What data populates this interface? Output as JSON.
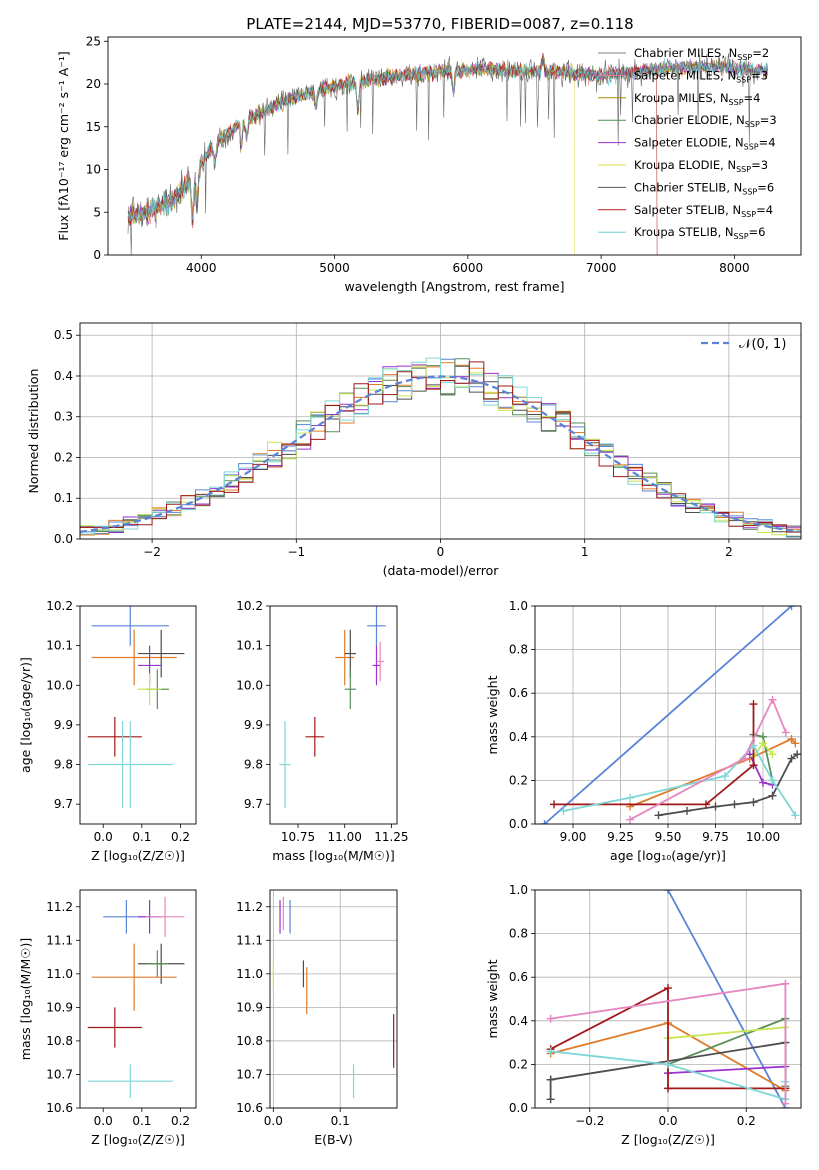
{
  "figure_title": "PLATE=2144, MJD=53770, FIBERID=0087, z=0.118",
  "colors": {
    "Chabrier MILES": "#7f7f7f",
    "Salpeter MILES": "#f08080",
    "Kroupa MILES": "#b8860b",
    "Chabrier ELODIE": "#4f8f4f",
    "Salpeter ELODIE": "#9932cc",
    "Kroupa ELODIE": "#dddd44",
    "Chabrier STELIB": "#555555",
    "Salpeter STELIB": "#b22222",
    "Kroupa STELIB": "#66d0d8",
    "blue": "#5b84d8",
    "orange": "#e07b2a",
    "green": "#5a8f5a",
    "purple": "#9932cc",
    "yellowgreen": "#c8e650",
    "darkgray": "#4d4d4d",
    "darkred": "#a01818",
    "cyan": "#7fd6d6",
    "pink": "#e587c0"
  },
  "chart_data": [
    {
      "id": "spectrum",
      "type": "line",
      "xlabel": "wavelength [Angstrom, rest frame]",
      "ylabel": "Flux [fλ10⁻¹⁷ erg cm⁻² s⁻¹ A⁻¹]",
      "xlim": [
        3300,
        8500
      ],
      "ylim": [
        0,
        25.5
      ],
      "xticks": [
        4000,
        5000,
        6000,
        7000,
        8000
      ],
      "yticks": [
        0,
        5,
        10,
        15,
        20,
        25
      ],
      "continuum": {
        "x": [
          3450,
          3600,
          3800,
          3950,
          4100,
          4300,
          4500,
          4700,
          4900,
          5100,
          5300,
          5500,
          5800,
          6100,
          6400,
          6700,
          7000,
          7300,
          7600,
          7900,
          8250
        ],
        "y": [
          4.5,
          5.0,
          6.5,
          9.5,
          13.0,
          15.5,
          17.0,
          18.5,
          19.5,
          20.0,
          20.5,
          21.0,
          21.5,
          21.8,
          21.5,
          21.5,
          21.0,
          21.5,
          22.0,
          22.0,
          21.5
        ]
      },
      "legend": {
        "entries": [
          {
            "label": "Chabrier MILES, N",
            "sub": "SSP",
            "tail": "=2"
          },
          {
            "label": "Salpeter MILES, N",
            "sub": "SSP",
            "tail": "=3"
          },
          {
            "label": "Kroupa MILES, N",
            "sub": "SSP",
            "tail": "=4"
          },
          {
            "label": "Chabrier ELODIE, N",
            "sub": "SSP",
            "tail": "=3"
          },
          {
            "label": "Salpeter ELODIE, N",
            "sub": "SSP",
            "tail": "=4"
          },
          {
            "label": "Kroupa ELODIE, N",
            "sub": "SSP",
            "tail": "=3"
          },
          {
            "label": "Chabrier STELIB, N",
            "sub": "SSP",
            "tail": "=6"
          },
          {
            "label": "Salpeter STELIB, N",
            "sub": "SSP",
            "tail": "=4"
          },
          {
            "label": "Kroupa STELIB, N",
            "sub": "SSP",
            "tail": "=6"
          }
        ]
      }
    },
    {
      "id": "residual-histogram",
      "type": "line",
      "xlabel": "(data-model)/error",
      "ylabel": "Normed distribution",
      "xlim": [
        -2.5,
        2.5
      ],
      "ylim": [
        0,
        0.53
      ],
      "xticks": [
        -2,
        -1,
        0,
        1,
        2
      ],
      "yticks": [
        0.0,
        0.1,
        0.2,
        0.3,
        0.4,
        0.5
      ],
      "grid": true,
      "bin_width": 0.1,
      "bins_x": [
        -2.5,
        2.5
      ],
      "gaussian_label": "𝒩(0, 1)",
      "legend_placement": "top-right"
    },
    {
      "id": "age-vs-Z",
      "type": "scatter",
      "xlabel": "Z [log₁₀(Z/Z☉)]",
      "ylabel": "age [log₁₀(age/yr)]",
      "xlim": [
        -0.06,
        0.24
      ],
      "ylim": [
        9.65,
        10.2
      ],
      "xticks": [
        0.0,
        0.1,
        0.2
      ],
      "yticks": [
        9.7,
        9.8,
        9.9,
        10.0,
        10.1,
        10.2
      ],
      "points": [
        {
          "color": "blue",
          "x": 0.07,
          "xerr": 0.1,
          "y": 10.15,
          "yerr": 0.05
        },
        {
          "color": "orange",
          "x": 0.08,
          "xerr": 0.11,
          "y": 10.07,
          "yerr": 0.07
        },
        {
          "color": "darkgray",
          "x": 0.15,
          "xerr": 0.06,
          "y": 10.08,
          "yerr": 0.06
        },
        {
          "color": "purple",
          "x": 0.12,
          "xerr": 0.03,
          "y": 10.05,
          "yerr": 0.05
        },
        {
          "color": "green",
          "x": 0.14,
          "xerr": 0.03,
          "y": 9.99,
          "yerr": 0.05
        },
        {
          "color": "yellowgreen",
          "x": 0.12,
          "xerr": 0.03,
          "y": 9.99,
          "yerr": 0.04
        },
        {
          "color": "darkred",
          "x": 0.03,
          "xerr": 0.07,
          "y": 9.87,
          "yerr": 0.05
        },
        {
          "color": "cyan",
          "x": 0.07,
          "xerr": 0.11,
          "y": 9.8,
          "yerr": 0.11
        },
        {
          "color": "cyan",
          "x": 0.05,
          "xerr": 0.0,
          "y": 9.8,
          "yerr": 0.11
        }
      ]
    },
    {
      "id": "age-vs-mass",
      "type": "scatter",
      "xlabel": "mass [log₁₀(M/M☉)]",
      "ylabel": "",
      "xlim": [
        10.6,
        11.28
      ],
      "ylim": [
        9.65,
        10.2
      ],
      "xticks": [
        10.75,
        11.0,
        11.25
      ],
      "yticks": [
        9.7,
        9.8,
        9.9,
        10.0,
        10.1,
        10.2
      ],
      "points": [
        {
          "color": "blue",
          "x": 11.17,
          "xerr": 0.05,
          "y": 10.15,
          "yerr": 0.05
        },
        {
          "color": "orange",
          "x": 11.0,
          "xerr": 0.05,
          "y": 10.07,
          "yerr": 0.07
        },
        {
          "color": "darkgray",
          "x": 11.03,
          "xerr": 0.03,
          "y": 10.08,
          "yerr": 0.06
        },
        {
          "color": "purple",
          "x": 11.17,
          "xerr": 0.02,
          "y": 10.05,
          "yerr": 0.05
        },
        {
          "color": "green",
          "x": 11.03,
          "xerr": 0.03,
          "y": 9.99,
          "yerr": 0.05
        },
        {
          "color": "pink",
          "x": 11.19,
          "xerr": 0.02,
          "y": 10.06,
          "yerr": 0.05
        },
        {
          "color": "darkred",
          "x": 10.84,
          "xerr": 0.05,
          "y": 9.87,
          "yerr": 0.05
        },
        {
          "color": "cyan",
          "x": 10.68,
          "xerr": 0.03,
          "y": 9.8,
          "yerr": 0.11
        }
      ]
    },
    {
      "id": "massweight-vs-age",
      "type": "line",
      "xlabel": "age [log₁₀(age/yr)]",
      "ylabel": "mass weight",
      "xlim": [
        8.8,
        10.2
      ],
      "ylim": [
        0,
        1.0
      ],
      "xticks": [
        9.0,
        9.25,
        9.5,
        9.75,
        10.0
      ],
      "xtick_labels": [
        "9.00",
        "9.25",
        "9.50",
        "9.75",
        "10.00"
      ],
      "yticks": [
        0.0,
        0.2,
        0.4,
        0.6,
        0.8,
        1.0
      ],
      "grid": true,
      "series": [
        {
          "color": "blue",
          "x": [
            8.85,
            10.15
          ],
          "y": [
            0.0,
            1.0
          ]
        },
        {
          "color": "orange",
          "x": [
            9.3,
            9.93,
            10.15,
            10.17
          ],
          "y": [
            0.08,
            0.3,
            0.39,
            0.37
          ]
        },
        {
          "color": "green",
          "x": [
            9.95,
            10.0,
            10.05
          ],
          "y": [
            0.41,
            0.4,
            0.2
          ]
        },
        {
          "color": "purple",
          "x": [
            9.93,
            10.0,
            10.05
          ],
          "y": [
            0.32,
            0.19,
            0.18
          ]
        },
        {
          "color": "yellowgreen",
          "x": [
            9.95,
            10.0,
            10.05
          ],
          "y": [
            0.31,
            0.37,
            0.32
          ]
        },
        {
          "color": "darkgray",
          "x": [
            9.45,
            9.6,
            9.75,
            9.85,
            9.95,
            10.05,
            10.15,
            10.18
          ],
          "y": [
            0.04,
            0.06,
            0.08,
            0.09,
            0.1,
            0.13,
            0.3,
            0.32
          ]
        },
        {
          "color": "darkred",
          "x": [
            8.9,
            9.7,
            9.95,
            9.95
          ],
          "y": [
            0.09,
            0.09,
            0.27,
            0.55
          ]
        },
        {
          "color": "cyan",
          "x": [
            8.95,
            9.3,
            9.8,
            9.95,
            10.05,
            10.17
          ],
          "y": [
            0.06,
            0.12,
            0.22,
            0.36,
            0.2,
            0.04
          ]
        },
        {
          "color": "pink",
          "x": [
            9.3,
            9.9,
            10.05,
            10.12
          ],
          "y": [
            0.02,
            0.3,
            0.57,
            0.42
          ]
        }
      ]
    },
    {
      "id": "mass-vs-Z",
      "type": "scatter",
      "xlabel": "Z [log₁₀(Z/Z☉)]",
      "ylabel": "mass [log₁₀(M/M☉)]",
      "xlim": [
        -0.06,
        0.24
      ],
      "ylim": [
        10.6,
        11.25
      ],
      "xticks": [
        0.0,
        0.1,
        0.2
      ],
      "yticks": [
        10.6,
        10.7,
        10.8,
        10.9,
        11.0,
        11.1,
        11.2
      ],
      "points": [
        {
          "color": "blue",
          "x": 0.06,
          "xerr": 0.06,
          "y": 11.17,
          "yerr": 0.05
        },
        {
          "color": "purple",
          "x": 0.12,
          "xerr": 0.03,
          "y": 11.17,
          "yerr": 0.05
        },
        {
          "color": "pink",
          "x": 0.16,
          "xerr": 0.05,
          "y": 11.17,
          "yerr": 0.06
        },
        {
          "color": "darkgray",
          "x": 0.15,
          "xerr": 0.06,
          "y": 11.03,
          "yerr": 0.06
        },
        {
          "color": "green",
          "x": 0.14,
          "xerr": 0.03,
          "y": 11.03,
          "yerr": 0.04
        },
        {
          "color": "orange",
          "x": 0.08,
          "xerr": 0.11,
          "y": 10.99,
          "yerr": 0.1
        },
        {
          "color": "darkred",
          "x": 0.03,
          "xerr": 0.07,
          "y": 10.84,
          "yerr": 0.06
        },
        {
          "color": "cyan",
          "x": 0.07,
          "xerr": 0.11,
          "y": 10.68,
          "yerr": 0.05
        }
      ]
    },
    {
      "id": "mass-vs-EBV",
      "type": "scatter",
      "xlabel": "E(B-V)",
      "ylabel": "",
      "xlim": [
        -0.005,
        0.185
      ],
      "ylim": [
        10.6,
        11.25
      ],
      "xticks": [
        0.0,
        0.1
      ],
      "yticks": [
        10.6,
        10.7,
        10.8,
        10.9,
        11.0,
        11.1,
        11.2
      ],
      "grid": true,
      "points": [
        {
          "color": "blue",
          "x": 0.025,
          "xerr": 0.0,
          "y": 11.17,
          "yerr": 0.05
        },
        {
          "color": "purple",
          "x": 0.01,
          "xerr": 0.0,
          "y": 11.17,
          "yerr": 0.05
        },
        {
          "color": "pink",
          "x": 0.015,
          "xerr": 0.0,
          "y": 11.18,
          "yerr": 0.05
        },
        {
          "color": "darkgray",
          "x": 0.045,
          "xerr": 0.0,
          "y": 11.0,
          "yerr": 0.04
        },
        {
          "color": "yellowgreen",
          "x": 0.0,
          "xerr": 0.0,
          "y": 11.0,
          "yerr": 0.04
        },
        {
          "color": "orange",
          "x": 0.05,
          "xerr": 0.0,
          "y": 10.95,
          "yerr": 0.07
        },
        {
          "color": "darkred",
          "x": 0.18,
          "xerr": 0.0,
          "y": 10.8,
          "yerr": 0.08
        },
        {
          "color": "cyan",
          "x": 0.12,
          "xerr": 0.0,
          "y": 10.68,
          "yerr": 0.05
        }
      ]
    },
    {
      "id": "massweight-vs-Z",
      "type": "line",
      "xlabel": "Z [log₁₀(Z/Z☉)]",
      "ylabel": "mass weight",
      "xlim": [
        -0.34,
        0.34
      ],
      "ylim": [
        0,
        1.0
      ],
      "xticks": [
        -0.2,
        0.0,
        0.2
      ],
      "xtick_labels": [
        "−0.2",
        "0.0",
        "0.2"
      ],
      "yticks": [
        0.0,
        0.2,
        0.4,
        0.6,
        0.8,
        1.0
      ],
      "grid": true,
      "series": [
        {
          "color": "blue",
          "x": [
            0.0,
            0.3
          ],
          "y": [
            1.0,
            0.0
          ]
        },
        {
          "color": "orange",
          "x": [
            -0.3,
            0.0,
            0.3,
            0.3
          ],
          "y": [
            0.25,
            0.39,
            0.08,
            0.3
          ]
        },
        {
          "color": "green",
          "x": [
            0.0,
            0.3,
            0.3
          ],
          "y": [
            0.2,
            0.41,
            0.1
          ]
        },
        {
          "color": "purple",
          "x": [
            0.0,
            0.3
          ],
          "y": [
            0.16,
            0.19
          ]
        },
        {
          "color": "yellowgreen",
          "x": [
            0.0,
            0.3
          ],
          "y": [
            0.32,
            0.37
          ]
        },
        {
          "color": "darkgray",
          "x": [
            -0.3,
            0.3,
            0.3
          ],
          "y": [
            0.13,
            0.3,
            0.04
          ]
        },
        {
          "color": "darkgray",
          "x": [
            -0.3,
            -0.3
          ],
          "y": [
            0.04,
            0.13
          ]
        },
        {
          "color": "darkred",
          "x": [
            -0.3,
            0.0,
            0.0,
            0.3
          ],
          "y": [
            0.27,
            0.55,
            0.09,
            0.09
          ]
        },
        {
          "color": "cyan",
          "x": [
            -0.3,
            0.0,
            0.3,
            0.3
          ],
          "y": [
            0.26,
            0.2,
            0.04,
            0.12
          ]
        },
        {
          "color": "pink",
          "x": [
            -0.3,
            0.3,
            0.3
          ],
          "y": [
            0.41,
            0.57,
            0.02
          ]
        }
      ]
    }
  ]
}
